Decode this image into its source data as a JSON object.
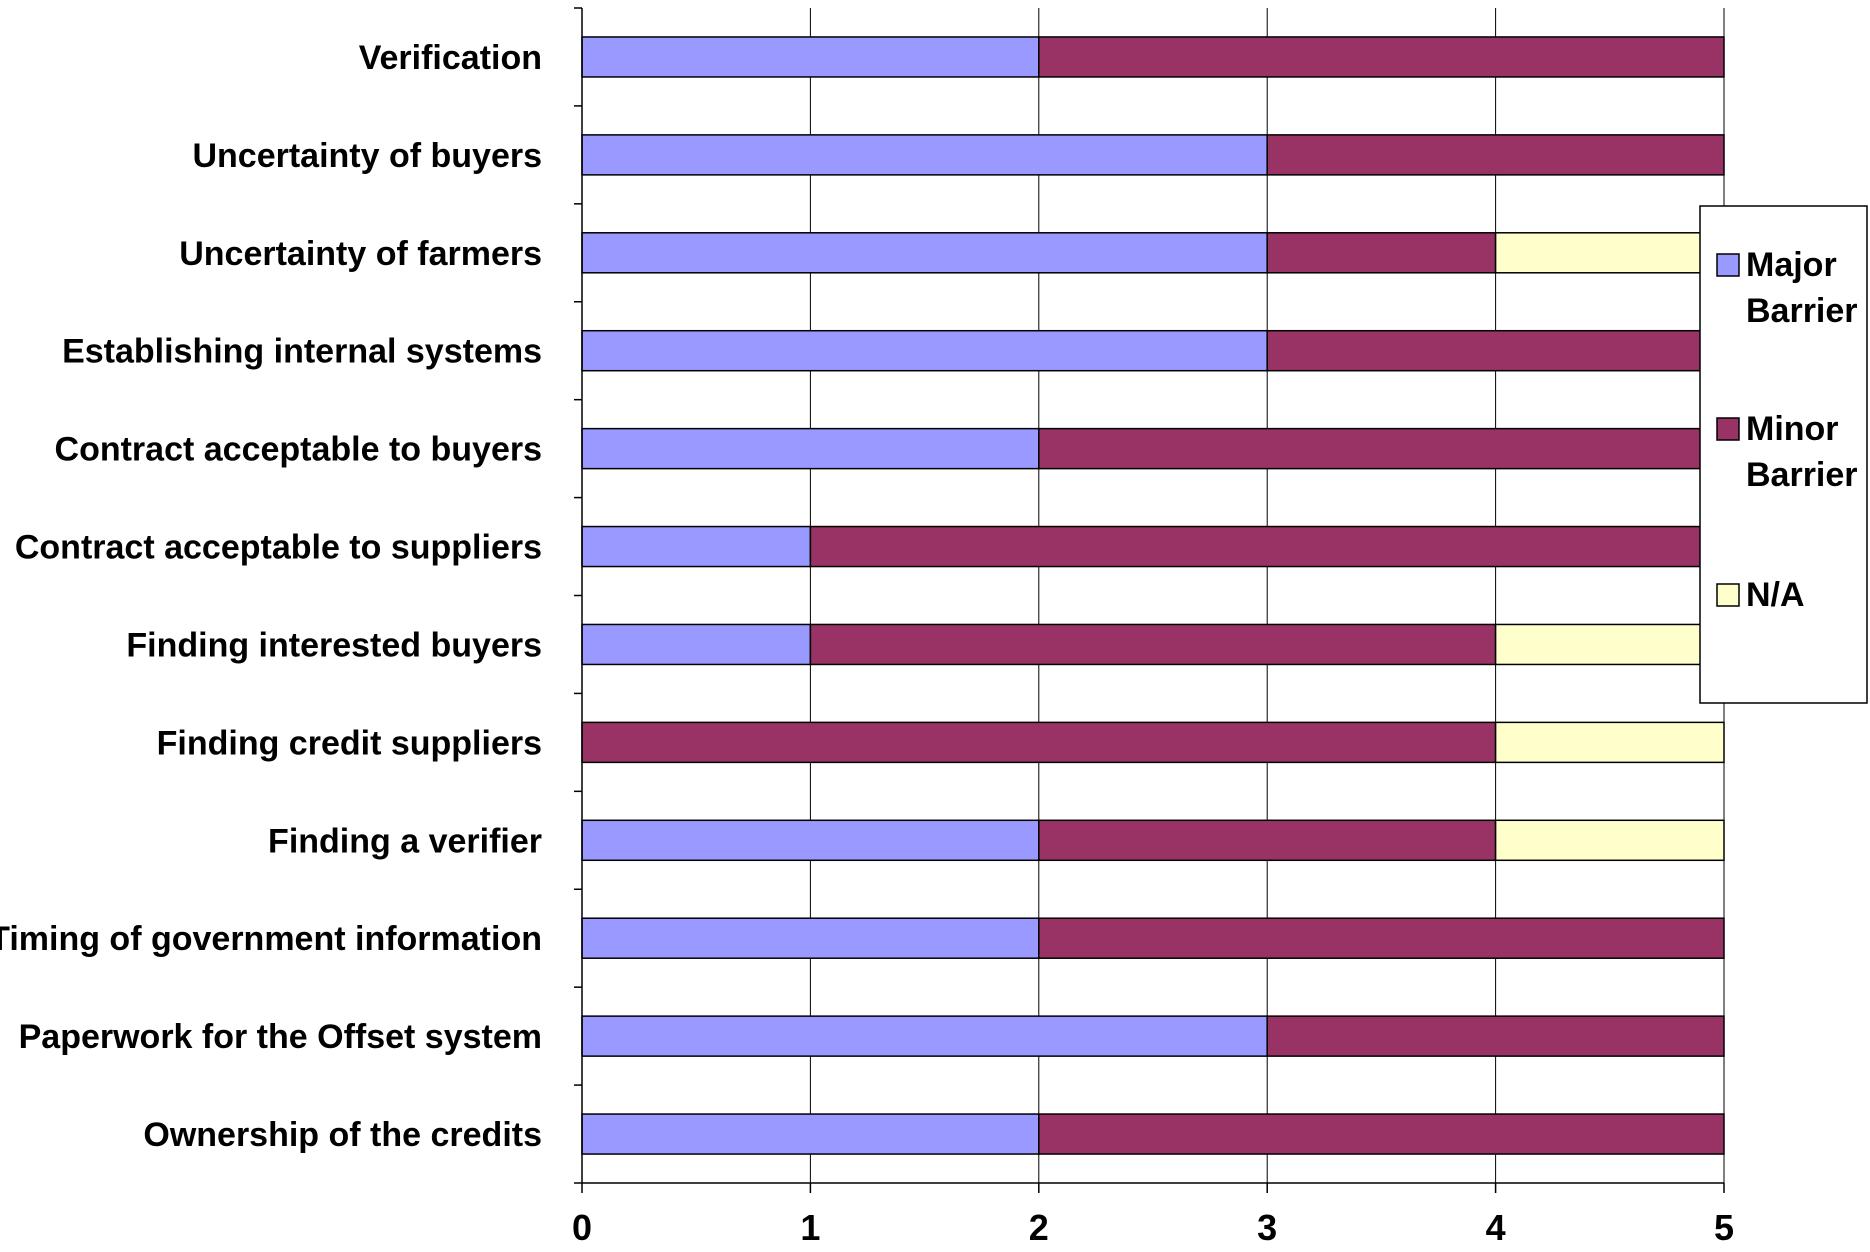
{
  "chart_data": {
    "type": "bar",
    "orientation": "horizontal",
    "stacked": true,
    "title": "",
    "xlabel": "",
    "ylabel": "",
    "xlim": [
      0,
      5
    ],
    "x_ticks": [
      "0",
      "1",
      "2",
      "3",
      "4",
      "5"
    ],
    "grid": "vertical",
    "legend_position": "right",
    "categories": [
      "Verification",
      "Uncertainty of buyers",
      "Uncertainty of farmers",
      "Establishing internal systems",
      "Contract acceptable to buyers",
      "Contract acceptable to suppliers",
      "Finding interested buyers",
      "Finding credit suppliers",
      "Finding a verifier",
      "Timing of government information",
      "Paperwork for the Offset system",
      "Ownership of the credits"
    ],
    "series": [
      {
        "name": "Major Barrier",
        "color": "#9999ff",
        "values": [
          2,
          3,
          3,
          3,
          2,
          1,
          1,
          0,
          2,
          2,
          3,
          2
        ]
      },
      {
        "name": "Minor Barrier",
        "color": "#993366",
        "values": [
          3,
          2,
          1,
          2,
          3,
          4,
          3,
          4,
          2,
          3,
          2,
          3
        ]
      },
      {
        "name": "N/A",
        "color": "#ffffcc",
        "values": [
          0,
          0,
          1,
          0,
          0,
          0,
          1,
          1,
          1,
          0,
          0,
          0
        ]
      }
    ]
  },
  "legend": {
    "items": [
      {
        "lines": [
          "Major",
          "Barrier"
        ],
        "color": "#9999ff"
      },
      {
        "lines": [
          "Minor",
          "Barrier"
        ],
        "color": "#993366"
      },
      {
        "lines": [
          "N/A"
        ],
        "color": "#ffffcc"
      }
    ]
  }
}
